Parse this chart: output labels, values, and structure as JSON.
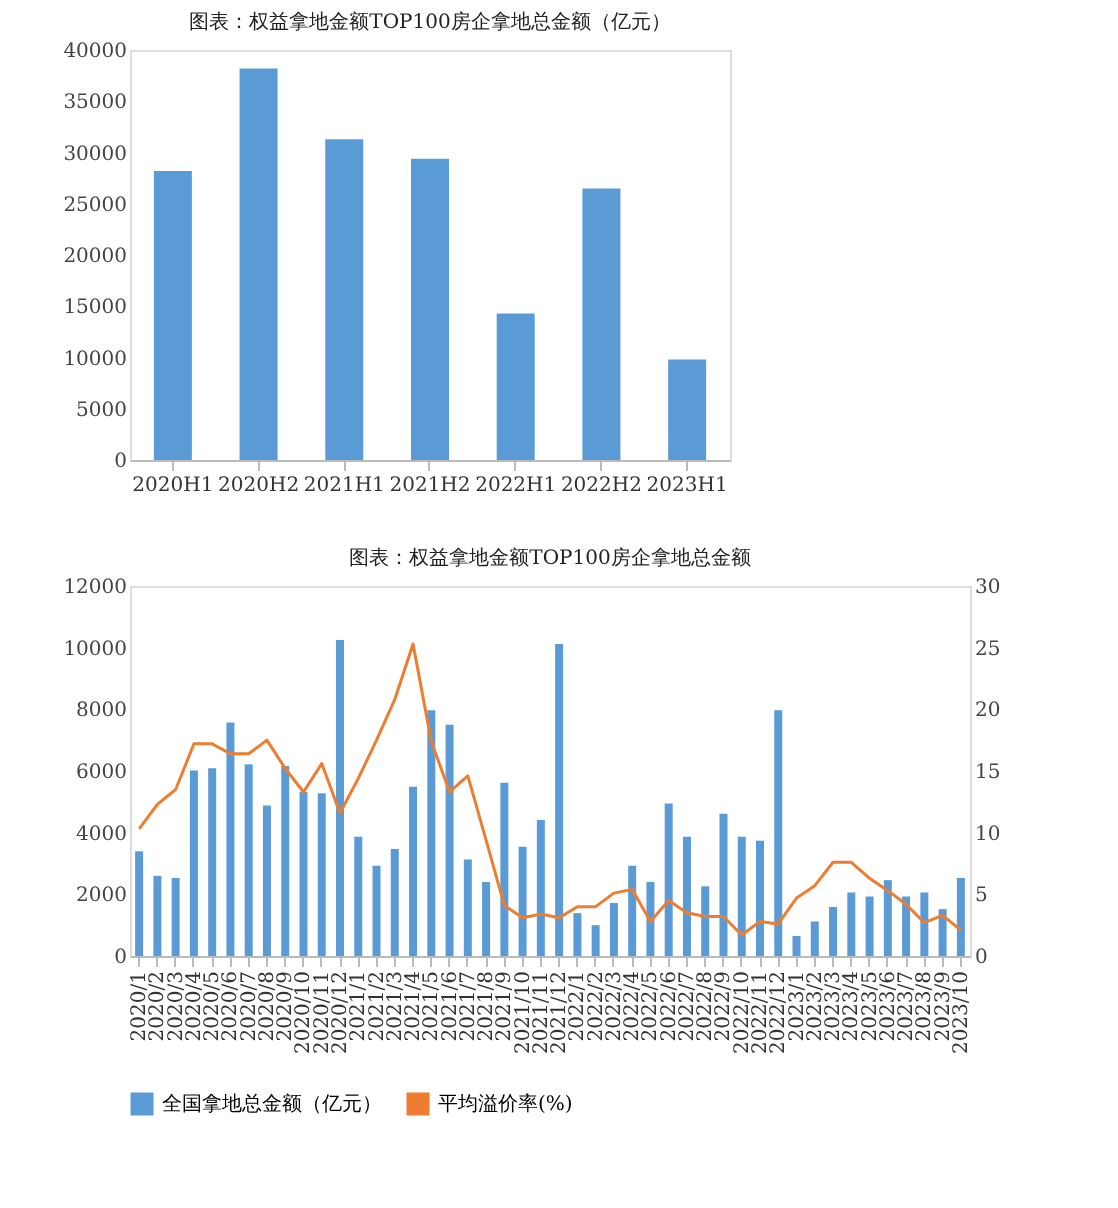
{
  "chart_data": [
    {
      "type": "bar",
      "title": "图表：权益拿地金额TOP100房企拿地总金额（亿元）",
      "categories": [
        "2020H1",
        "2020H2",
        "2021H1",
        "2021H2",
        "2022H1",
        "2022H2",
        "2023H1"
      ],
      "color": "#5b9bd5",
      "values": [
        28200,
        38200,
        31300,
        29400,
        14300,
        26500,
        9800
      ],
      "ylim": [
        0,
        40000
      ],
      "yticks": [
        0,
        5000,
        10000,
        15000,
        20000,
        25000,
        30000,
        35000,
        40000
      ],
      "grid": false
    },
    {
      "type": "bar",
      "title": "图表：权益拿地金额TOP100房企拿地总金额",
      "categories": [
        "2020/1",
        "2020/2",
        "2020/3",
        "2020/4",
        "2020/5",
        "2020/6",
        "2020/7",
        "2020/8",
        "2020/9",
        "2020/10",
        "2020/11",
        "2020/12",
        "2021/1",
        "2021/2",
        "2021/3",
        "2021/4",
        "2021/5",
        "2021/6",
        "2021/7",
        "2021/8",
        "2021/9",
        "2021/10",
        "2021/11",
        "2021/12",
        "2022/1",
        "2022/2",
        "2022/3",
        "2022/4",
        "2022/5",
        "2022/6",
        "2022/7",
        "2022/8",
        "2022/9",
        "2022/10",
        "2022/11",
        "2022/12",
        "2023/1",
        "2023/2",
        "2023/3",
        "2023/4",
        "2023/5",
        "2023/6",
        "2023/7",
        "2023/8",
        "2023/9",
        "2023/10"
      ],
      "series": [
        {
          "name": "全国拿地总金额（亿元）",
          "type": "bar",
          "color": "#5b9bd5",
          "values": [
            3400,
            2600,
            2530,
            6020,
            6090,
            7570,
            6220,
            4880,
            6160,
            5330,
            5280,
            10250,
            3870,
            2930,
            3470,
            5490,
            7970,
            7500,
            3130,
            2400,
            5620,
            3540,
            4410,
            10120,
            1390,
            1000,
            1720,
            2930,
            2400,
            4950,
            3870,
            2260,
            4610,
            3870,
            3740,
            7970,
            650,
            1120,
            1590,
            2060,
            1930,
            2460,
            1930,
            2060,
            1520,
            2530
          ]
        },
        {
          "name": "平均溢价率(%)",
          "type": "line",
          "axis": "y2",
          "line_style": "solid",
          "color": "#ed7d31",
          "values": [
            10.3,
            12.3,
            13.5,
            17.2,
            17.2,
            16.4,
            16.4,
            17.5,
            15.2,
            13.3,
            15.6,
            11.6,
            14.4,
            17.5,
            20.8,
            25.3,
            17.4,
            13.3,
            14.6,
            9.4,
            4.1,
            3.1,
            3.4,
            3.1,
            4.0,
            4.0,
            5.1,
            5.4,
            2.8,
            4.5,
            3.5,
            3.2,
            3.2,
            1.7,
            2.8,
            2.6,
            4.7,
            5.7,
            7.6,
            7.6,
            6.3,
            5.3,
            4.2,
            2.7,
            3.3,
            2.1
          ]
        }
      ],
      "ylim": [
        0,
        12000
      ],
      "yticks": [
        0,
        2000,
        4000,
        6000,
        8000,
        10000,
        12000
      ],
      "y2lim": [
        0,
        30
      ],
      "y2ticks": [
        0,
        5,
        10,
        15,
        20,
        25,
        30
      ],
      "legend": "bottom",
      "grid": false
    }
  ]
}
